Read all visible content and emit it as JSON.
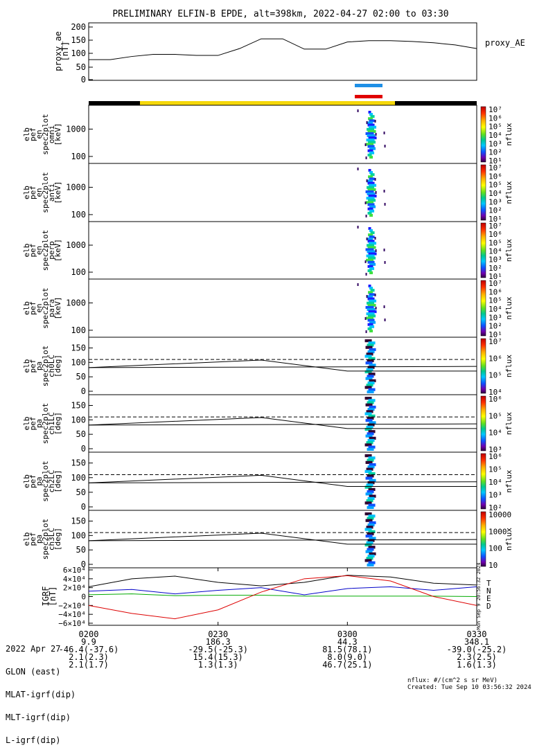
{
  "title": "PRELIMINARY ELFIN-B EPDE, alt=398km, 2022-04-27 02:00 to 03:30",
  "chart_data": [
    {
      "type": "line",
      "panel": "proxy_ae",
      "ylabel_lines": [
        "proxy_ae",
        "[nT]"
      ],
      "legend": "proxy_AE",
      "ylim": [
        0,
        200
      ],
      "yticks": [
        "200",
        "150",
        "100",
        "50",
        "0"
      ],
      "x_minutes": [
        0,
        5,
        10,
        15,
        20,
        25,
        30,
        35,
        40,
        45,
        50,
        55,
        60,
        65,
        70,
        75,
        80,
        85,
        90
      ],
      "values": [
        76,
        76,
        88,
        96,
        96,
        92,
        92,
        118,
        155,
        155,
        116,
        116,
        143,
        148,
        148,
        145,
        140,
        132,
        118
      ]
    },
    {
      "type": "heatmap",
      "panel": "omni",
      "ylabel_lines": [
        "elb",
        "pef",
        "en",
        "spec2plot",
        "omni",
        "[keV]"
      ],
      "yticks": [
        "1000",
        "100"
      ],
      "colorbar_label": "nflux",
      "colorbar_ticks": [
        "10⁷",
        "10⁶",
        "10⁵",
        "10⁴",
        "10³",
        "10²",
        "10¹"
      ]
    },
    {
      "type": "heatmap",
      "panel": "anti",
      "ylabel_lines": [
        "elb",
        "pef",
        "en",
        "spec2plot",
        "anti",
        "[keV]"
      ],
      "yticks": [
        "1000",
        "100"
      ],
      "colorbar_label": "nflux",
      "colorbar_ticks": [
        "10⁷",
        "10⁶",
        "10⁵",
        "10⁴",
        "10³",
        "10²",
        "10¹"
      ]
    },
    {
      "type": "heatmap",
      "panel": "perp",
      "ylabel_lines": [
        "elb",
        "pef",
        "en",
        "spec2plot",
        "perp",
        "[keV]"
      ],
      "yticks": [
        "1000",
        "100"
      ],
      "colorbar_label": "nflux",
      "colorbar_ticks": [
        "10⁷",
        "10⁶",
        "10⁵",
        "10⁴",
        "10³",
        "10²",
        "10¹"
      ]
    },
    {
      "type": "heatmap",
      "panel": "para",
      "ylabel_lines": [
        "elb",
        "pef",
        "en",
        "spec2plot",
        "para",
        "[keV]"
      ],
      "yticks": [
        "1000",
        "100"
      ],
      "colorbar_label": "nflux",
      "colorbar_ticks": [
        "10⁷",
        "10⁶",
        "10⁵",
        "10⁴",
        "10³",
        "10²",
        "10¹"
      ]
    },
    {
      "type": "heatmap",
      "panel": "ch0LC",
      "ylabel_lines": [
        "elb",
        "pef",
        "pa",
        "spec2plot",
        "ch0LC",
        "[deg]"
      ],
      "yticks": [
        "150",
        "100",
        "50",
        "0"
      ],
      "ylim": [
        0,
        180
      ],
      "colorbar_label": "nflux",
      "colorbar_ticks": [
        "10⁷",
        "10⁶",
        "10⁵",
        "10⁴"
      ]
    },
    {
      "type": "heatmap",
      "panel": "ch1LC",
      "ylabel_lines": [
        "elb",
        "pef",
        "pa",
        "spec2plot",
        "ch1LC",
        "[deg]"
      ],
      "yticks": [
        "150",
        "100",
        "50",
        "0"
      ],
      "ylim": [
        0,
        180
      ],
      "colorbar_label": "nflux",
      "colorbar_ticks": [
        "10⁶",
        "10⁵",
        "10⁴",
        "10³"
      ]
    },
    {
      "type": "heatmap",
      "panel": "ch2LC",
      "ylabel_lines": [
        "elb",
        "pef",
        "pa",
        "spec2plot",
        "ch2LC",
        "[deg]"
      ],
      "yticks": [
        "150",
        "100",
        "50",
        "0"
      ],
      "ylim": [
        0,
        180
      ],
      "colorbar_label": "nflux",
      "colorbar_ticks": [
        "10⁶",
        "10⁵",
        "10⁴",
        "10³",
        "10²"
      ]
    },
    {
      "type": "heatmap",
      "panel": "ch3LC",
      "ylabel_lines": [
        "elb",
        "pef",
        "pa",
        "spec2plot",
        "ch3LC",
        "[deg]"
      ],
      "yticks": [
        "150",
        "100",
        "50",
        "0"
      ],
      "ylim": [
        0,
        180
      ],
      "colorbar_label": "nflux",
      "colorbar_ticks": [
        "10000",
        "1000",
        "100",
        "10"
      ]
    },
    {
      "type": "line",
      "panel": "IGRF",
      "ylabel_lines": [
        "IGRF",
        "[nT]"
      ],
      "yticks": [
        "6×10⁴",
        "4×10⁴",
        "2×10⁴",
        "0",
        "−2×10⁴",
        "−4×10⁴",
        "−6×10⁴"
      ],
      "ylim": [
        -60000,
        60000
      ],
      "legend": [
        "T",
        "N",
        "E",
        "D"
      ],
      "x_minutes": [
        0,
        10,
        20,
        30,
        40,
        50,
        60,
        70,
        80,
        90
      ],
      "series": [
        {
          "name": "T",
          "color": "#000000",
          "values": [
            22000,
            40000,
            46000,
            32000,
            24000,
            32000,
            48000,
            44000,
            30000,
            26000
          ]
        },
        {
          "name": "N",
          "color": "#0000c8",
          "values": [
            12000,
            16000,
            6000,
            14000,
            20000,
            4000,
            18000,
            22000,
            14000,
            22000
          ]
        },
        {
          "name": "E",
          "color": "#00aa00",
          "values": [
            4000,
            6000,
            2000,
            3000,
            3000,
            1000,
            1000,
            1000,
            1000,
            0
          ]
        },
        {
          "name": "D",
          "color": "#dd0000",
          "values": [
            -20000,
            -38000,
            -50000,
            -30000,
            10000,
            40000,
            47000,
            35000,
            0,
            -20000
          ]
        }
      ]
    }
  ],
  "xticks": [
    "0200",
    "0230",
    "0300",
    "0330"
  ],
  "bottom_labels": [
    "2022 Apr 27",
    "GLON (east)",
    "MLAT-igrf(dip)",
    "MLT-igrf(dip)",
    "L-igrf(dip)"
  ],
  "bottom_rows": [
    [
      "0200",
      "0230",
      "0300",
      "0330"
    ],
    [
      "9.9",
      "186.3",
      "44.3",
      "348.1"
    ],
    [
      "-46.4(-37.6)",
      "-29.5(-25.3)",
      "81.5(78.1)",
      "-39.0(-25.2)"
    ],
    [
      "2.1(2.3)",
      "15.4(15.3)",
      "8.0(9.0)",
      "2.3(2.5)"
    ],
    [
      "2.1(1.7)",
      "1.3(1.3)",
      "46.7(25.1)",
      "1.6(1.3)"
    ]
  ],
  "footnote_nflux": "nflux: #/(cm^2 s sr MeV)",
  "footnote_created": "Created: Tue Sep 10 03:56:32 2024",
  "side_stamp": "Mon Sep 9 20:56:32 2024",
  "colors": {
    "blue_bar": "#1e8fe6",
    "red_bar": "#e00000",
    "yellow_bar": "#f5d80a"
  }
}
